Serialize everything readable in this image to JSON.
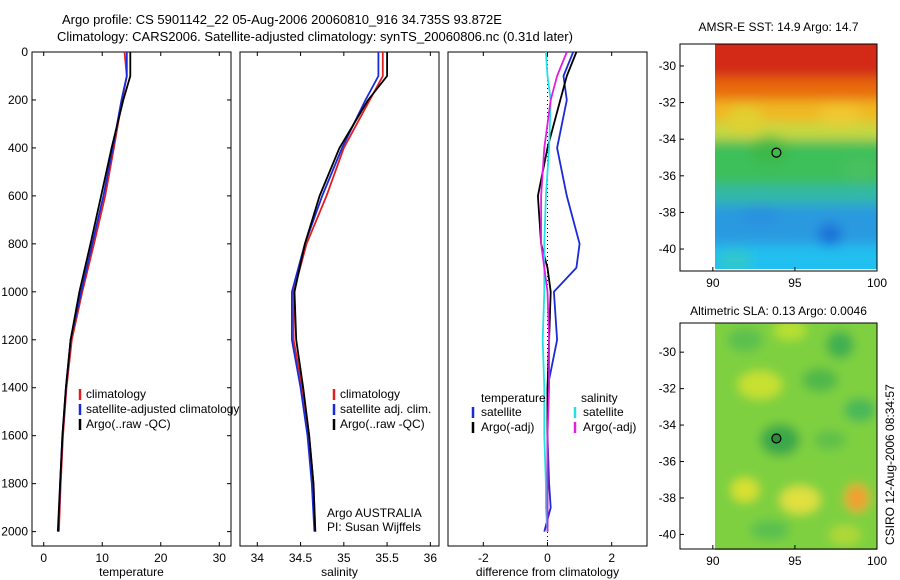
{
  "title": {
    "line1": "Argo profile: CS 5901142_22 05-Aug-2006 20060810_916 34.735S 93.872E",
    "line2": "Climatology: CARS2006. Satellite-adjusted climatology: synTS_20060806.nc (0.31d later)"
  },
  "footer": {
    "owner": "Argo AUSTRALIA",
    "pi": "PI: Susan Wijffels",
    "stamp": "CSIRO 12-Aug-2006 08:34:57"
  },
  "colors": {
    "climatology": "#e02020",
    "satellite": "#1a2ad8",
    "argo": "#000000",
    "salinity_satellite": "#22e0e8",
    "salinity_argo": "#e020e0",
    "marker": "#20a020"
  },
  "chart_data": [
    {
      "type": "line",
      "xlabel": "temperature",
      "ylabel": "",
      "xlim": [
        -2,
        32
      ],
      "ylim": [
        2060,
        0
      ],
      "y_reversed": true,
      "xticks": [
        0,
        10,
        20,
        30
      ],
      "yticks": [
        0,
        200,
        400,
        600,
        800,
        1000,
        1200,
        1400,
        1600,
        1800,
        2000
      ],
      "legend_position": "lower-right",
      "series": [
        {
          "name": "climatology",
          "color": "#e02020",
          "x": [
            13.8,
            14.2,
            13.4,
            12.0,
            10.5,
            8.6,
            6.6,
            4.8,
            3.9,
            3.3,
            2.9,
            2.6
          ],
          "y": [
            0,
            100,
            200,
            400,
            600,
            800,
            1000,
            1200,
            1400,
            1600,
            1800,
            2000
          ]
        },
        {
          "name": "satellite-adjusted climatology",
          "color": "#1a2ad8",
          "x": [
            14.2,
            14.2,
            13.3,
            11.8,
            10.2,
            8.3,
            6.4,
            4.6,
            3.8,
            3.2,
            2.8,
            2.5
          ],
          "y": [
            0,
            100,
            200,
            400,
            600,
            800,
            1000,
            1200,
            1400,
            1600,
            1800,
            2000
          ]
        },
        {
          "name": "Argo(..raw -QC)",
          "color": "#000000",
          "x": [
            14.8,
            14.8,
            13.6,
            11.6,
            9.8,
            8.0,
            6.1,
            4.6,
            3.8,
            3.2,
            2.8,
            2.4
          ],
          "y": [
            0,
            100,
            200,
            400,
            600,
            800,
            1000,
            1200,
            1400,
            1600,
            1800,
            2000
          ]
        }
      ]
    },
    {
      "type": "line",
      "xlabel": "salinity",
      "ylabel": "",
      "xlim": [
        33.8,
        36.1
      ],
      "ylim": [
        2060,
        0
      ],
      "y_reversed": true,
      "xticks": [
        34,
        34.5,
        35,
        35.5,
        36
      ],
      "yticks": [],
      "legend_position": "lower-right",
      "series": [
        {
          "name": "climatology",
          "color": "#e02020",
          "x": [
            35.45,
            35.45,
            35.3,
            35.0,
            34.8,
            34.57,
            34.42,
            34.42,
            34.52,
            34.6,
            34.65,
            34.67
          ],
          "y": [
            0,
            100,
            200,
            400,
            600,
            800,
            1000,
            1200,
            1400,
            1600,
            1800,
            2000
          ]
        },
        {
          "name": "satellite adj. clim.",
          "color": "#1a2ad8",
          "x": [
            35.4,
            35.4,
            35.25,
            34.98,
            34.75,
            34.55,
            34.4,
            34.4,
            34.5,
            34.58,
            34.63,
            34.66
          ],
          "y": [
            0,
            100,
            200,
            400,
            600,
            800,
            1000,
            1200,
            1400,
            1600,
            1800,
            2000
          ]
        },
        {
          "name": "Argo(..raw -QC)",
          "color": "#000000",
          "x": [
            35.5,
            35.5,
            35.28,
            34.95,
            34.72,
            34.55,
            34.43,
            34.45,
            34.53,
            34.6,
            34.65,
            34.67
          ],
          "y": [
            0,
            100,
            200,
            400,
            600,
            800,
            1000,
            1200,
            1400,
            1600,
            1800,
            2000
          ]
        }
      ]
    },
    {
      "type": "line",
      "xlabel": "difference from climatology",
      "ylabel": "",
      "xlim": [
        -3.1,
        3.1
      ],
      "ylim": [
        2060,
        0
      ],
      "y_reversed": true,
      "xticks": [
        -2,
        0,
        2
      ],
      "yticks": [],
      "legend_title_left": "temperature",
      "legend_title_right": "salinity",
      "legend_position": "lower-center",
      "series": [
        {
          "name": "satellite",
          "group": "temperature",
          "color": "#1a2ad8",
          "x": [
            0.8,
            0.5,
            0.6,
            0.3,
            0.6,
            0.8,
            1.0,
            0.9,
            0.2,
            0.3,
            0.0,
            0.0,
            0.05,
            0.1,
            -0.1
          ],
          "y": [
            0,
            100,
            200,
            400,
            600,
            700,
            800,
            900,
            1000,
            1200,
            1400,
            1600,
            1800,
            1900,
            2000
          ]
        },
        {
          "name": "Argo(-adj)",
          "group": "temperature",
          "color": "#000000",
          "x": [
            0.9,
            0.6,
            0.4,
            0.0,
            -0.3,
            -0.2,
            0.0,
            0.1,
            0.05,
            0.0,
            0.0,
            0.0,
            0.0,
            0.0
          ],
          "y": [
            0,
            100,
            200,
            400,
            600,
            800,
            900,
            1000,
            1200,
            1400,
            1600,
            1800,
            1900,
            2000
          ]
        },
        {
          "name": "satellite",
          "group": "salinity",
          "color": "#22e0e8",
          "x": [
            -0.05,
            0.0,
            0.1,
            0.05,
            -0.05,
            -0.1,
            -0.1,
            -0.1,
            -0.15,
            -0.1,
            -0.1,
            -0.05,
            -0.05,
            0.0
          ],
          "y": [
            0,
            100,
            200,
            400,
            600,
            800,
            900,
            1000,
            1200,
            1400,
            1600,
            1800,
            1900,
            2000
          ]
        },
        {
          "name": "Argo(-adj)",
          "group": "salinity",
          "color": "#e020e0",
          "x": [
            0.6,
            0.3,
            0.1,
            -0.1,
            -0.2,
            -0.2,
            -0.1,
            0.0,
            0.05,
            0.05,
            0.0,
            0.0,
            0.0,
            0.0
          ],
          "y": [
            0,
            100,
            200,
            400,
            600,
            800,
            900,
            1000,
            1200,
            1400,
            1600,
            1800,
            1900,
            2000
          ]
        }
      ]
    },
    {
      "type": "heatmap",
      "title": "AMSR-E SST: 14.9  Argo: 14.7",
      "xlim": [
        88,
        100
      ],
      "ylim": [
        -41.2,
        -28.8
      ],
      "xticks": [
        90,
        95,
        100
      ],
      "yticks": [
        -30,
        -32,
        -34,
        -36,
        -38,
        -40
      ],
      "field_extent_lon": [
        90,
        100
      ],
      "field_extent_lat": [
        -40.5,
        -29
      ],
      "marker": {
        "lon": 93.872,
        "lat": -34.735,
        "style": "hollow"
      }
    },
    {
      "type": "heatmap",
      "title": "Altimetric SLA: 0.13  Argo: 0.0046",
      "xlim": [
        88,
        100
      ],
      "ylim": [
        -40.8,
        -28.4
      ],
      "xticks": [
        90,
        95,
        100
      ],
      "yticks": [
        -30,
        -32,
        -34,
        -36,
        -38,
        -40
      ],
      "field_extent_lon": [
        90,
        100
      ],
      "field_extent_lat": [
        -40.5,
        -28.4
      ],
      "marker": {
        "lon": 93.872,
        "lat": -34.735,
        "style": "filled"
      }
    }
  ]
}
